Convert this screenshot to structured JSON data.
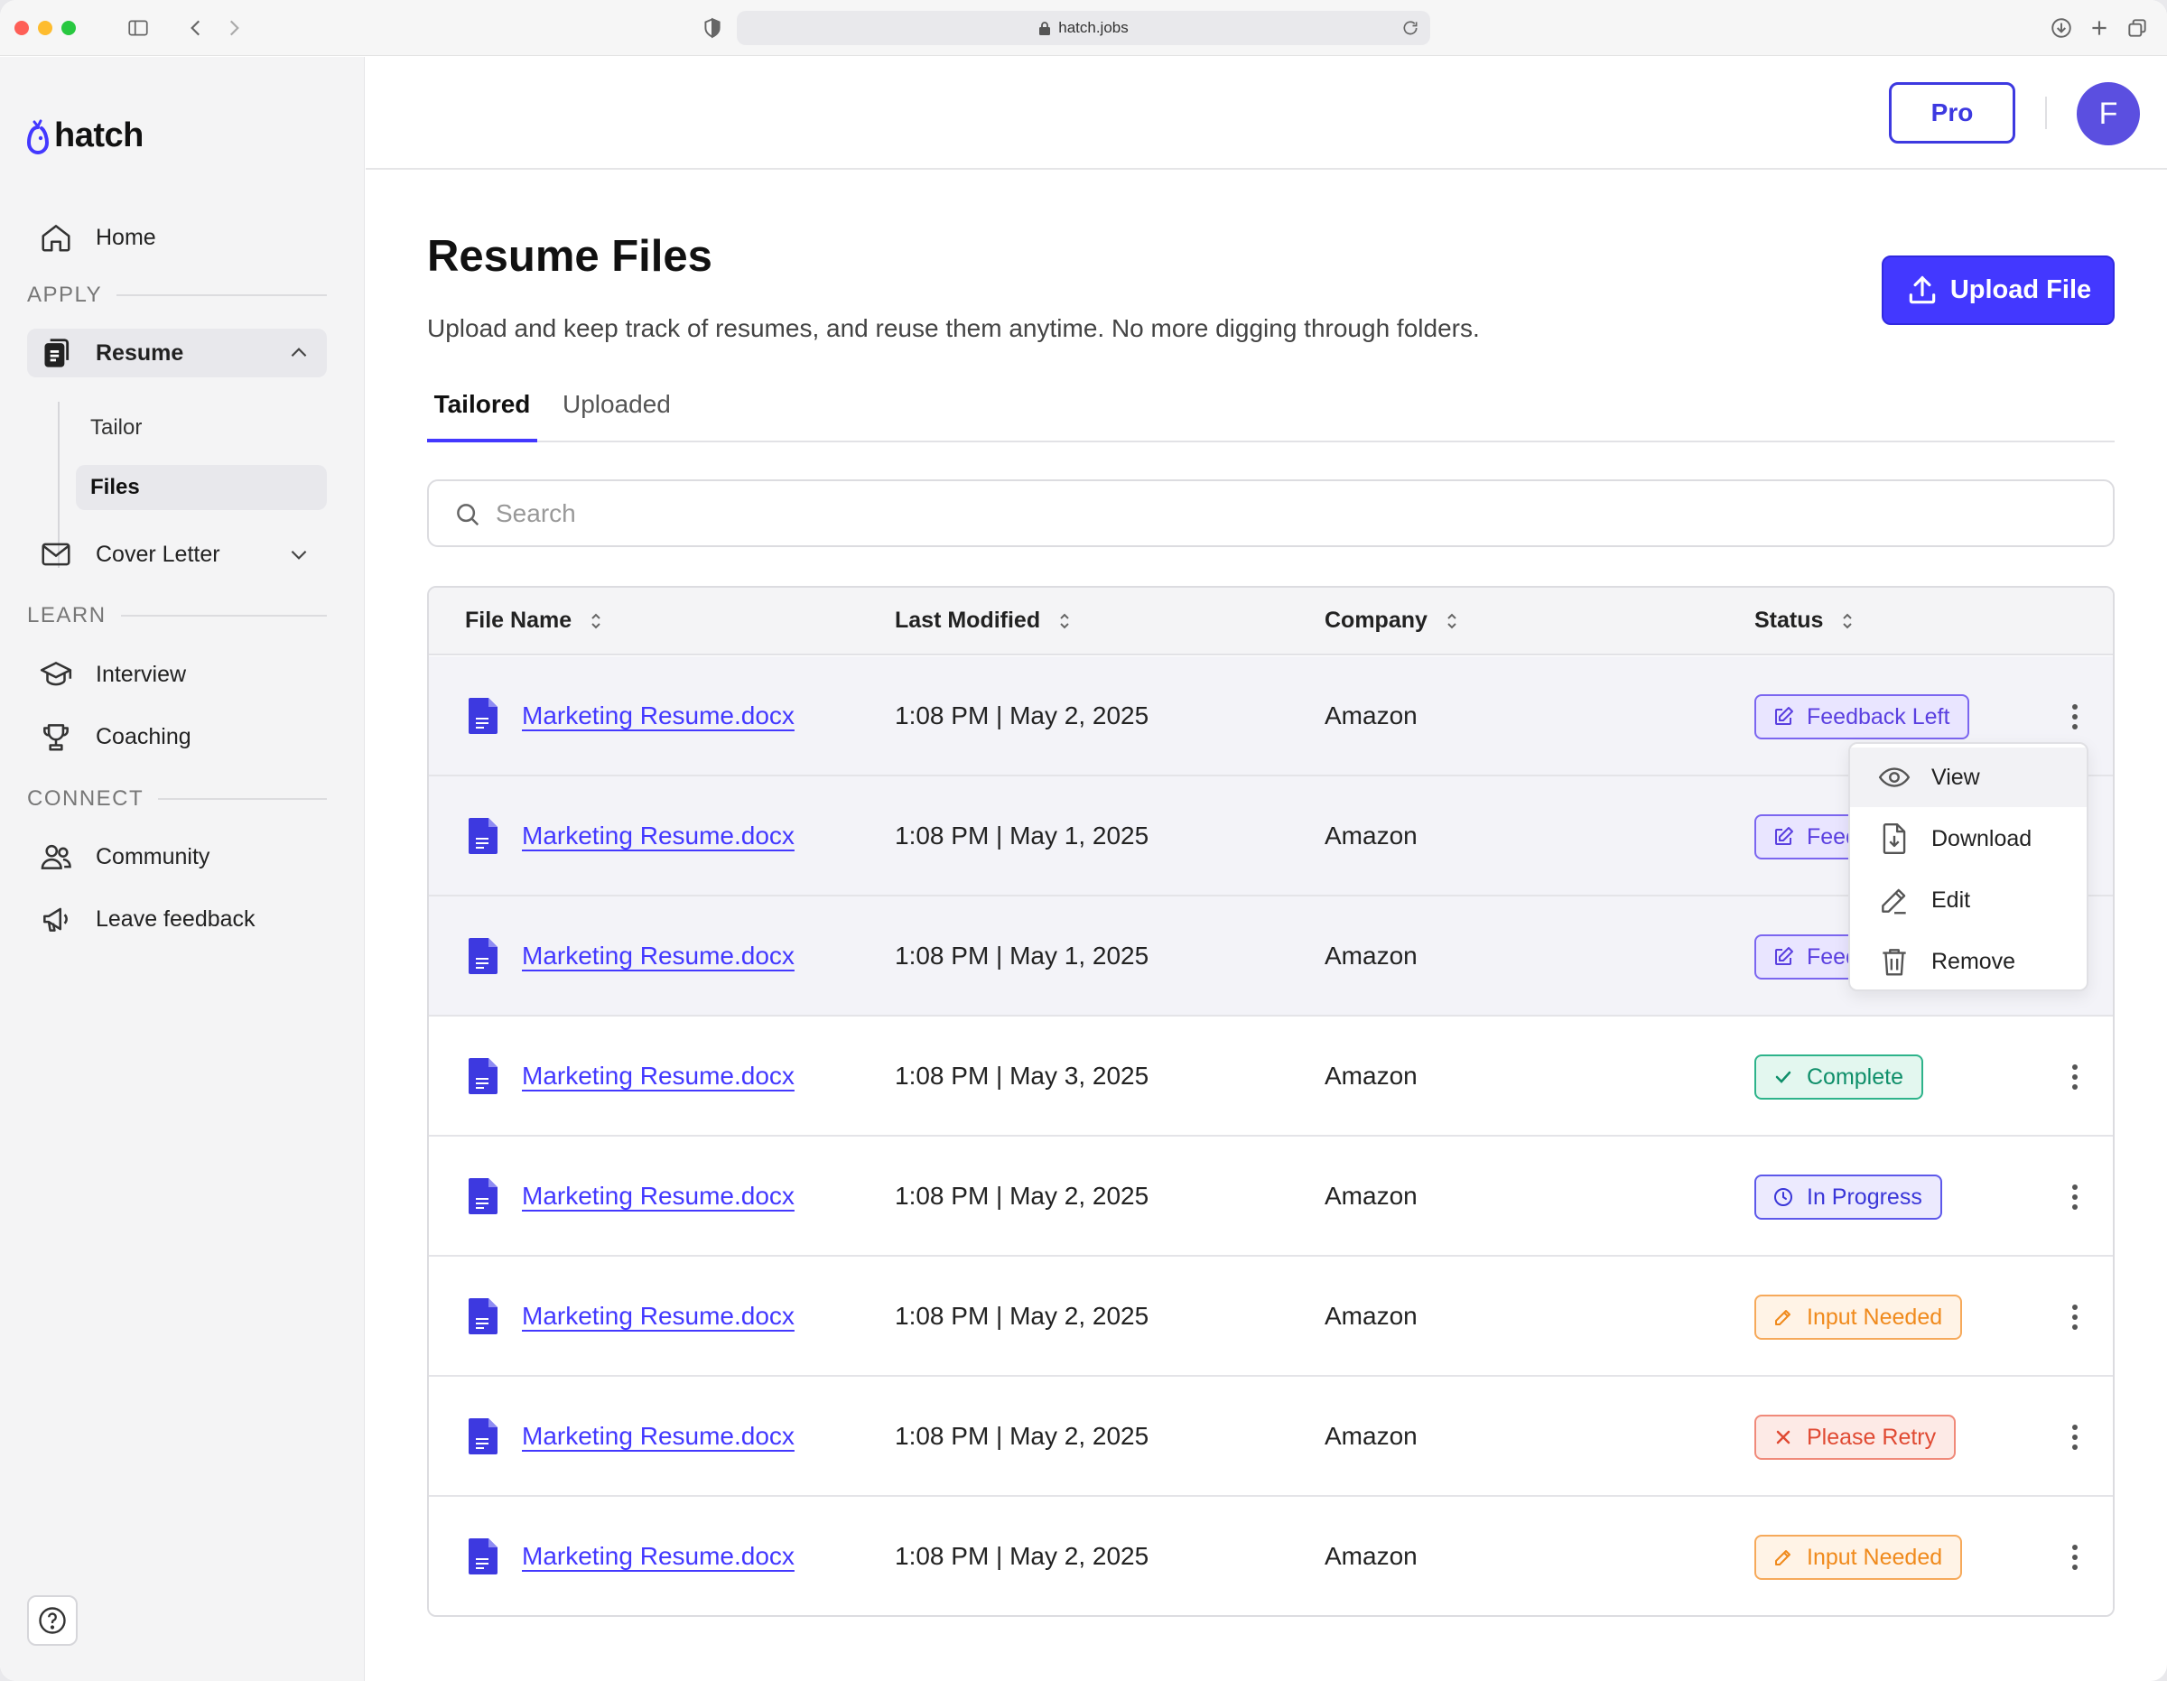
{
  "browser": {
    "url": "hatch.jobs"
  },
  "sidebar": {
    "logo": "hatch",
    "home": "Home",
    "sections": {
      "apply": "APPLY",
      "learn": "LEARN",
      "connect": "CONNECT"
    },
    "resume": "Resume",
    "resume_sub": [
      "Tailor",
      "Files"
    ],
    "cover_letter": "Cover Letter",
    "interview": "Interview",
    "coaching": "Coaching",
    "community": "Community",
    "feedback": "Leave feedback"
  },
  "header": {
    "pro_label": "Pro",
    "avatar_initial": "F"
  },
  "main": {
    "title": "Resume Files",
    "subtitle": "Upload and keep track of resumes, and reuse them anytime. No more digging through folders.",
    "upload_label": "Upload File",
    "tabs": [
      "Tailored",
      "Uploaded"
    ],
    "search_placeholder": "Search"
  },
  "table": {
    "columns": [
      "File Name",
      "Last Modified",
      "Company",
      "Status"
    ],
    "rows": [
      {
        "file": "Marketing Resume.docx",
        "modified": "1:08 PM | May 2, 2025",
        "company": "Amazon",
        "status": "Feedback Left",
        "kind": "feedback"
      },
      {
        "file": "Marketing Resume.docx",
        "modified": "1:08 PM | May 1, 2025",
        "company": "Amazon",
        "status": "Feedback Left",
        "kind": "feedback"
      },
      {
        "file": "Marketing Resume.docx",
        "modified": "1:08 PM | May 1, 2025",
        "company": "Amazon",
        "status": "Feedback Left",
        "kind": "feedback"
      },
      {
        "file": "Marketing Resume.docx",
        "modified": "1:08 PM | May 3, 2025",
        "company": "Amazon",
        "status": "Complete",
        "kind": "complete"
      },
      {
        "file": "Marketing Resume.docx",
        "modified": "1:08 PM | May 2, 2025",
        "company": "Amazon",
        "status": "In Progress",
        "kind": "progress"
      },
      {
        "file": "Marketing Resume.docx",
        "modified": "1:08 PM | May 2, 2025",
        "company": "Amazon",
        "status": "Input Needed",
        "kind": "input"
      },
      {
        "file": "Marketing Resume.docx",
        "modified": "1:08 PM | May 2, 2025",
        "company": "Amazon",
        "status": "Please Retry",
        "kind": "retry"
      },
      {
        "file": "Marketing Resume.docx",
        "modified": "1:08 PM | May 2, 2025",
        "company": "Amazon",
        "status": "Input Needed",
        "kind": "input"
      }
    ]
  },
  "context_menu": {
    "items": [
      "View",
      "Download",
      "Edit",
      "Remove"
    ]
  },
  "colors": {
    "accent": "#4338ff",
    "feedback": "#5a3fe0",
    "complete": "#0f8f6a",
    "progress": "#3a36d8",
    "input": "#f08a1c",
    "retry": "#e04a33"
  }
}
